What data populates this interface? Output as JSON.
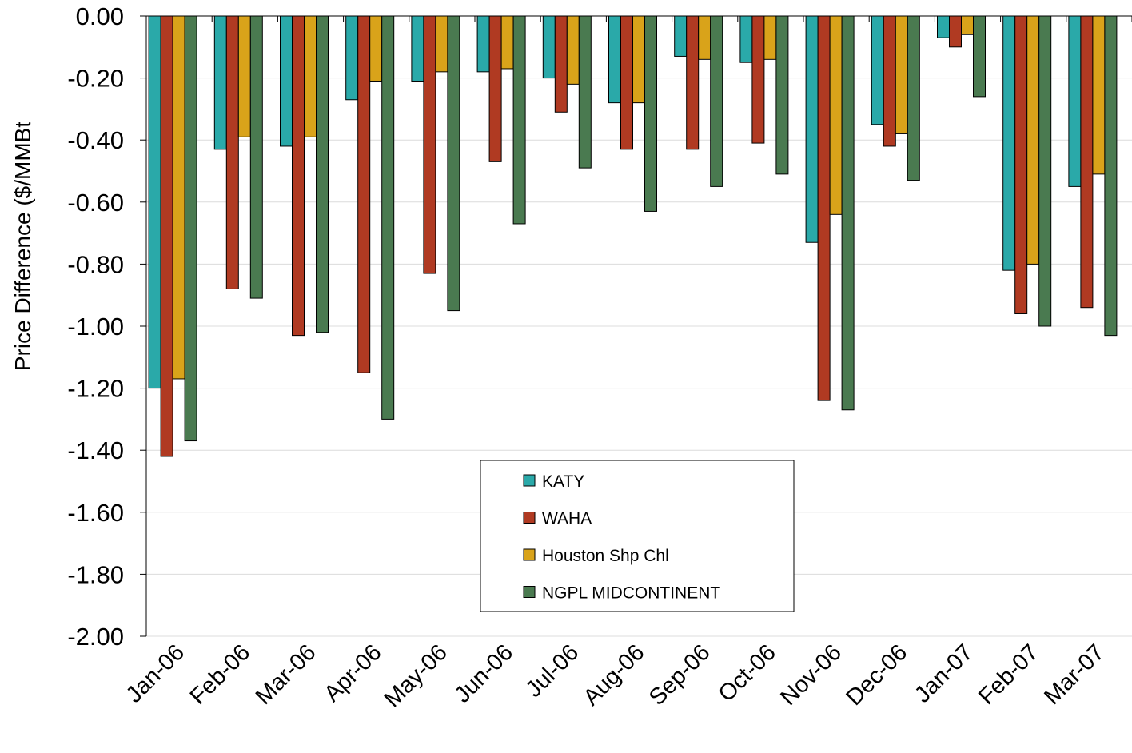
{
  "chart_data": {
    "type": "bar",
    "y_label": "Price Difference ($/MMBt",
    "categories": [
      "Jan-06",
      "Feb-06",
      "Mar-06",
      "Apr-06",
      "May-06",
      "Jun-06",
      "Jul-06",
      "Aug-06",
      "Sep-06",
      "Oct-06",
      "Nov-06",
      "Dec-06",
      "Jan-07",
      "Feb-07",
      "Mar-07"
    ],
    "series": [
      {
        "name": "KATY",
        "color": "#2aa9a9",
        "values": [
          -1.2,
          -0.43,
          -0.42,
          -0.27,
          -0.21,
          -0.18,
          -0.2,
          -0.28,
          -0.13,
          -0.15,
          -0.73,
          -0.35,
          -0.07,
          -0.82,
          -0.55
        ]
      },
      {
        "name": "WAHA",
        "color": "#b03a22",
        "values": [
          -1.42,
          -0.88,
          -1.03,
          -1.15,
          -0.83,
          -0.47,
          -0.31,
          -0.43,
          -0.43,
          -0.41,
          -1.24,
          -0.42,
          -0.1,
          -0.96,
          -0.94
        ]
      },
      {
        "name": "Houston Shp Chl",
        "color": "#d9a31a",
        "values": [
          -1.17,
          -0.39,
          -0.39,
          -0.21,
          -0.18,
          -0.17,
          -0.22,
          -0.28,
          -0.14,
          -0.14,
          -0.64,
          -0.38,
          -0.06,
          -0.8,
          -0.51
        ]
      },
      {
        "name": "NGPL MIDCONTINENT",
        "color": "#4a7a50",
        "values": [
          -1.37,
          -0.91,
          -1.02,
          -1.3,
          -0.95,
          -0.67,
          -0.49,
          -0.63,
          -0.55,
          -0.51,
          -1.27,
          -0.53,
          -0.26,
          -1.0,
          -1.03
        ]
      }
    ],
    "ylim": [
      -2,
      0
    ],
    "yticks": [
      {
        "value": -2,
        "label": "-2.00"
      },
      {
        "value": -1.8,
        "label": "-1.80"
      },
      {
        "value": -1.6,
        "label": "-1.60"
      },
      {
        "value": -1.4,
        "label": "-1.40"
      },
      {
        "value": -1.2,
        "label": "-1.20"
      },
      {
        "value": -1,
        "label": "-1.00"
      },
      {
        "value": -0.8,
        "label": "-0.80"
      },
      {
        "value": -0.6,
        "label": "-0.60"
      },
      {
        "value": -0.4,
        "label": "-0.40"
      },
      {
        "value": -0.2,
        "label": "-0.20"
      },
      {
        "value": 0,
        "label": "0.00"
      }
    ],
    "grid": true
  }
}
